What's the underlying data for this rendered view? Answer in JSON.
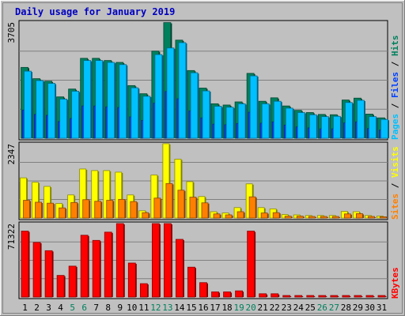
{
  "chart_data": {
    "type": "bar",
    "title": "Daily usage for January 2019",
    "days": [
      "1",
      "2",
      "3",
      "4",
      "5",
      "6",
      "7",
      "8",
      "9",
      "10",
      "11",
      "12",
      "13",
      "14",
      "15",
      "16",
      "17",
      "18",
      "19",
      "20",
      "21",
      "22",
      "23",
      "24",
      "25",
      "26",
      "27",
      "28",
      "29",
      "30",
      "31"
    ],
    "weekend_days": [
      "5",
      "6",
      "12",
      "13",
      "19",
      "20",
      "26",
      "27"
    ],
    "panels": [
      {
        "name": "hits-files-pages",
        "ymax_label": "3705",
        "ymax": 3705,
        "legend": [
          {
            "text": "Pages",
            "color": "#00c0ff"
          },
          {
            "text": "Files",
            "color": "#0040ff"
          },
          {
            "text": "Hits",
            "color": "#00805c"
          }
        ],
        "series": [
          {
            "name": "Hits",
            "color": "#00805c",
            "values": [
              2260,
              1900,
              1820,
              1320,
              1570,
              2550,
              2550,
              2480,
              2420,
              1680,
              1420,
              2780,
              3690,
              3130,
              2160,
              1600,
              1100,
              1060,
              1160,
              2070,
              1180,
              1290,
              1030,
              890,
              820,
              760,
              750,
              1220,
              1280,
              770,
              650
            ]
          },
          {
            "name": "Files",
            "color": "#0040ff",
            "values": [
              900,
              760,
              730,
              530,
              630,
              1030,
              1030,
              1000,
              980,
              680,
              570,
              1120,
              1490,
              1260,
              870,
              650,
              450,
              430,
              470,
              830,
              480,
              520,
              420,
              360,
              330,
              300,
              300,
              490,
              520,
              310,
              260
            ]
          },
          {
            "name": "Pages",
            "color": "#00c0ff",
            "values": [
              2140,
              1840,
              1750,
              1250,
              1500,
              2480,
              2480,
              2420,
              2350,
              1610,
              1340,
              2670,
              2880,
              3050,
              2090,
              1510,
              1020,
              990,
              1100,
              1990,
              1100,
              1180,
              960,
              820,
              750,
              690,
              700,
              1140,
              1210,
              690,
              600
            ]
          }
        ]
      },
      {
        "name": "visits-sites",
        "ymax_label": "2347",
        "ymax": 2347,
        "legend": [
          {
            "text": "Sites",
            "color": "#ff8000"
          },
          {
            "text": "Visits",
            "color": "#ffff00"
          }
        ],
        "series": [
          {
            "name": "Visits",
            "color": "#ffff00",
            "values": [
              1270,
              1130,
              1000,
              460,
              730,
              1550,
              1500,
              1500,
              1450,
              730,
              230,
              1360,
              2350,
              1860,
              1150,
              680,
              200,
              160,
              330,
              1080,
              330,
              290,
              110,
              100,
              80,
              80,
              80,
              210,
              200,
              80,
              60
            ]
          },
          {
            "name": "Sites",
            "color": "#ff8000",
            "values": [
              560,
              500,
              470,
              320,
              490,
              580,
              530,
              560,
              590,
              520,
              170,
              630,
              1090,
              880,
              660,
              480,
              130,
              100,
              200,
              670,
              160,
              170,
              60,
              60,
              50,
              50,
              50,
              130,
              140,
              50,
              40
            ]
          }
        ]
      },
      {
        "name": "kbytes",
        "ymax_label": "71322",
        "ymax": 71322,
        "legend": [
          {
            "text": "KBytes",
            "color": "#ff0000"
          }
        ],
        "series": [
          {
            "name": "KBytes",
            "color": "#ff0000",
            "values": [
              64000,
              53000,
              45000,
              21000,
              30000,
              60000,
              55000,
              63000,
              71322,
              33000,
              13000,
              71322,
              71322,
              56000,
              29000,
              14000,
              5000,
              5000,
              6000,
              64000,
              3200,
              3200,
              1500,
              1500,
              1500,
              1500,
              1500,
              1500,
              1500,
              1500,
              1500
            ]
          }
        ]
      }
    ]
  }
}
